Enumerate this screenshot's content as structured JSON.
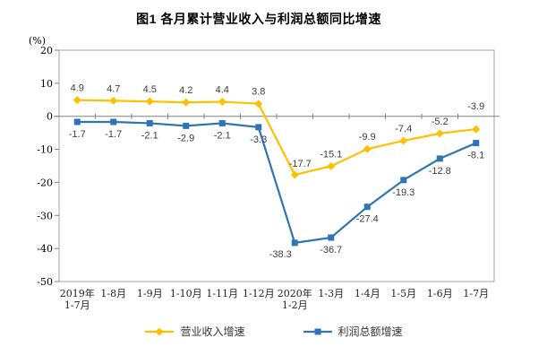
{
  "chart_data": {
    "type": "line",
    "title": "图1  各月累计营业收入与利润总额同比增速",
    "y_unit_label": "(%)",
    "categories": [
      "2019年\n1-7月",
      "1-8月",
      "1-9月",
      "1-10月",
      "1-11月",
      "1-12月",
      "2020年\n1-2月",
      "1-3月",
      "1-4月",
      "1-5月",
      "1-6月",
      "1-7月"
    ],
    "series": [
      {
        "name": "营业收入增速",
        "color": "#FFC000",
        "marker": "diamond",
        "values": [
          4.9,
          4.7,
          4.5,
          4.2,
          4.4,
          3.8,
          -17.7,
          -15.1,
          -9.9,
          -7.4,
          -5.2,
          -3.9
        ],
        "labels": [
          "4.9",
          "4.7",
          "4.5",
          "4.2",
          "4.4",
          "3.8",
          "-17.7",
          "-15.1",
          "-9.9",
          "-7.4",
          "-5.2",
          "-3.9"
        ]
      },
      {
        "name": "利润总额增速",
        "color": "#2E75B6",
        "marker": "square",
        "values": [
          -1.7,
          -1.7,
          -2.1,
          -2.9,
          -2.1,
          -3.3,
          -38.3,
          -36.7,
          -27.4,
          -19.3,
          -12.8,
          -8.1
        ],
        "labels": [
          "-1.7",
          "-1.7",
          "-2.1",
          "-2.9",
          "-2.1",
          "-3.3",
          "-38.3",
          "-36.7",
          "-27.4",
          "-19.3",
          "-12.8",
          "-8.1"
        ]
      }
    ],
    "ylim": [
      -50,
      20
    ],
    "yticks": [
      20,
      10,
      0,
      -10,
      -20,
      -30,
      -40,
      -50
    ],
    "grid": false,
    "legend_position": "bottom",
    "colors": {
      "plot_border": "#a6a6a6",
      "zero_axis": "#808080",
      "tick": "#808080",
      "tick_label": "#000000",
      "data_label": "#3d3d3d"
    }
  }
}
